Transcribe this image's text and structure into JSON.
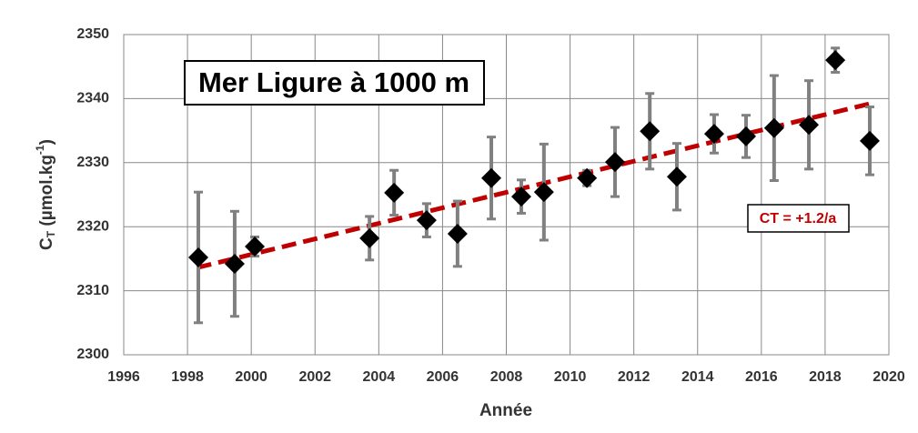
{
  "chart_data": {
    "type": "scatter",
    "title": "Mer Ligure à 1000 m",
    "xlabel": "Année",
    "ylabel": {
      "main": "C",
      "sub": "T",
      "unit": " (µmol.kg",
      "sup": "-1",
      "end": ")"
    },
    "annotation": "CT = +1.2/a",
    "xlim": [
      1996,
      2020
    ],
    "xticks": [
      1996,
      1998,
      2000,
      2002,
      2004,
      2006,
      2008,
      2010,
      2012,
      2014,
      2016,
      2018,
      2020
    ],
    "ylim": [
      2300,
      2350
    ],
    "yticks": [
      2300,
      2310,
      2320,
      2330,
      2340,
      2350
    ],
    "grid": true,
    "series": [
      {
        "color": "#000000",
        "error_color": "#808080",
        "x": [
          1998.34,
          1999.48,
          2000.11,
          2003.71,
          2004.48,
          2005.5,
          2006.47,
          2007.53,
          2008.47,
          2009.18,
          2010.53,
          2011.41,
          2012.5,
          2013.35,
          2014.52,
          2015.52,
          2016.4,
          2017.49,
          2018.32,
          2019.4
        ],
        "values": [
          2315.2,
          2314.2,
          2316.9,
          2318.2,
          2325.3,
          2321.0,
          2318.9,
          2327.6,
          2324.7,
          2325.4,
          2327.6,
          2330.1,
          2334.9,
          2327.8,
          2334.5,
          2334.1,
          2335.4,
          2335.9,
          2346.0,
          2333.4
        ],
        "errors": [
          10.2,
          8.2,
          1.5,
          3.4,
          3.5,
          2.6,
          5.1,
          6.4,
          2.6,
          7.5,
          1.2,
          5.4,
          5.9,
          5.2,
          3.0,
          3.3,
          8.2,
          6.9,
          1.9,
          5.3
        ]
      }
    ],
    "trend": {
      "color": "#c00000",
      "x": [
        1998.3,
        2019.4
      ],
      "values": [
        2313.6,
        2339.2
      ]
    }
  }
}
